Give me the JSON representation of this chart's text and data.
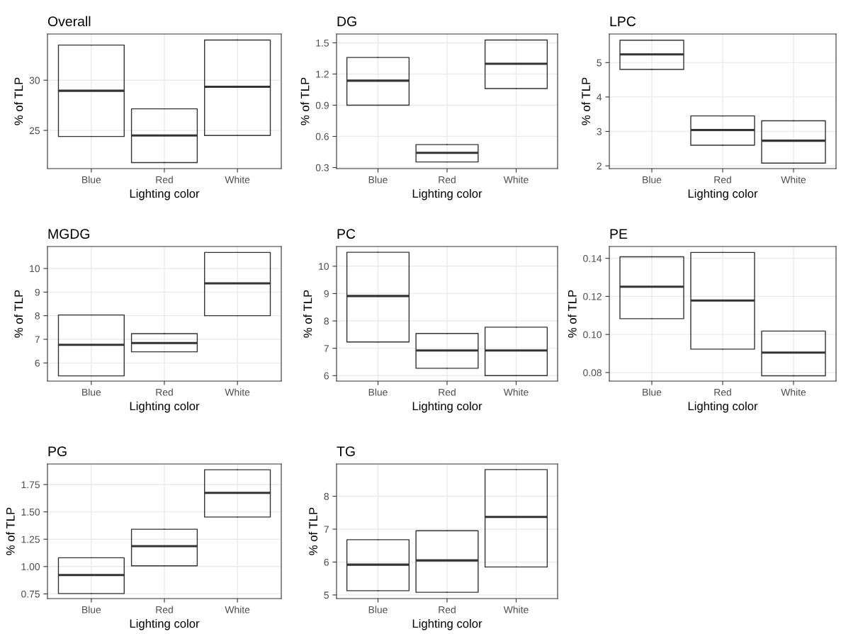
{
  "chart_data": [
    {
      "type": "box",
      "title": "Overall",
      "xlabel": "Lighting color",
      "ylabel": "% of TLP",
      "categories": [
        "Blue",
        "Red",
        "White"
      ],
      "boxes": [
        {
          "low": 24.4,
          "q1": 24.4,
          "median": 28.95,
          "q3": 33.5,
          "high": 33.5
        },
        {
          "low": 21.8,
          "q1": 21.8,
          "median": 24.5,
          "q3": 27.15,
          "high": 27.15
        },
        {
          "low": 24.5,
          "q1": 24.5,
          "median": 29.35,
          "q3": 34.0,
          "high": 34.0
        }
      ],
      "ylim": [
        21.2,
        34.6
      ],
      "yticks": [
        25,
        30
      ],
      "grid": true
    },
    {
      "type": "box",
      "title": "DG",
      "xlabel": "Lighting color",
      "ylabel": "% of TLP",
      "categories": [
        "Blue",
        "Red",
        "White"
      ],
      "boxes": [
        {
          "low": 0.9,
          "q1": 0.9,
          "median": 1.136,
          "q3": 1.359,
          "high": 1.359
        },
        {
          "low": 0.354,
          "q1": 0.354,
          "median": 0.441,
          "q3": 0.521,
          "high": 0.521
        },
        {
          "low": 1.06,
          "q1": 1.06,
          "median": 1.299,
          "q3": 1.527,
          "high": 1.527
        }
      ],
      "ylim": [
        0.29,
        1.585
      ],
      "yticks": [
        0.3,
        0.6,
        0.9,
        1.2,
        1.5
      ],
      "grid": true
    },
    {
      "type": "box",
      "title": "LPC",
      "xlabel": "Lighting color",
      "ylabel": "% of TLP",
      "categories": [
        "Blue",
        "Red",
        "White"
      ],
      "boxes": [
        {
          "low": 4.8,
          "q1": 4.8,
          "median": 5.24,
          "q3": 5.65,
          "high": 5.65
        },
        {
          "low": 2.6,
          "q1": 2.6,
          "median": 3.04,
          "q3": 3.45,
          "high": 3.45
        },
        {
          "low": 2.08,
          "q1": 2.08,
          "median": 2.73,
          "q3": 3.31,
          "high": 3.31
        }
      ],
      "ylim": [
        1.92,
        5.83
      ],
      "yticks": [
        2,
        3,
        4,
        5
      ],
      "grid": true
    },
    {
      "type": "box",
      "title": "MGDG",
      "xlabel": "Lighting color",
      "ylabel": "% of TLP",
      "categories": [
        "Blue",
        "Red",
        "White"
      ],
      "boxes": [
        {
          "low": 5.45,
          "q1": 5.45,
          "median": 6.77,
          "q3": 8.03,
          "high": 8.03
        },
        {
          "low": 6.47,
          "q1": 6.47,
          "median": 6.84,
          "q3": 7.24,
          "high": 7.24
        },
        {
          "low": 8.0,
          "q1": 8.0,
          "median": 9.37,
          "q3": 10.68,
          "high": 10.68
        }
      ],
      "ylim": [
        5.23,
        10.93
      ],
      "yticks": [
        6,
        7,
        8,
        9,
        10
      ],
      "grid": true
    },
    {
      "type": "box",
      "title": "PC",
      "xlabel": "Lighting color",
      "ylabel": "% of TLP",
      "categories": [
        "Blue",
        "Red",
        "White"
      ],
      "boxes": [
        {
          "low": 7.23,
          "q1": 7.23,
          "median": 8.91,
          "q3": 10.51,
          "high": 10.51
        },
        {
          "low": 6.27,
          "q1": 6.27,
          "median": 6.92,
          "q3": 7.54,
          "high": 7.54
        },
        {
          "low": 6.0,
          "q1": 6.0,
          "median": 6.92,
          "q3": 7.77,
          "high": 7.77
        }
      ],
      "ylim": [
        5.8,
        10.72
      ],
      "yticks": [
        6,
        7,
        8,
        9,
        10
      ],
      "grid": true
    },
    {
      "type": "box",
      "title": "PE",
      "xlabel": "Lighting color",
      "ylabel": "% of TLP",
      "categories": [
        "Blue",
        "Red",
        "White"
      ],
      "boxes": [
        {
          "low": 0.1083,
          "q1": 0.1083,
          "median": 0.1251,
          "q3": 0.1408,
          "high": 0.1408
        },
        {
          "low": 0.0923,
          "q1": 0.0923,
          "median": 0.1178,
          "q3": 0.1431,
          "high": 0.1431
        },
        {
          "low": 0.0783,
          "q1": 0.0783,
          "median": 0.0905,
          "q3": 0.1018,
          "high": 0.1018
        }
      ],
      "ylim": [
        0.0755,
        0.1462
      ],
      "yticks": [
        0.08,
        {
          "value": 0.1,
          "label": "0.10"
        },
        0.12,
        0.14
      ],
      "grid": true
    },
    {
      "type": "box",
      "title": "PG",
      "xlabel": "Lighting color",
      "ylabel": "% of TLP",
      "categories": [
        "Blue",
        "Red",
        "White"
      ],
      "boxes": [
        {
          "low": 0.753,
          "q1": 0.753,
          "median": 0.922,
          "q3": 1.08,
          "high": 1.08
        },
        {
          "low": 1.007,
          "q1": 1.007,
          "median": 1.186,
          "q3": 1.341,
          "high": 1.341
        },
        {
          "low": 1.453,
          "q1": 1.453,
          "median": 1.674,
          "q3": 1.885,
          "high": 1.885
        }
      ],
      "ylim": [
        0.707,
        1.938
      ],
      "yticks": [
        0.75,
        {
          "value": 1.0,
          "label": "1.00"
        },
        1.25,
        {
          "value": 1.5,
          "label": "1.50"
        },
        1.75
      ],
      "grid": true
    },
    {
      "type": "box",
      "title": "TG",
      "xlabel": "Lighting color",
      "ylabel": "% of TLP",
      "categories": [
        "Blue",
        "Red",
        "White"
      ],
      "boxes": [
        {
          "low": 5.13,
          "q1": 5.13,
          "median": 5.92,
          "q3": 6.68,
          "high": 6.68
        },
        {
          "low": 5.08,
          "q1": 5.08,
          "median": 6.05,
          "q3": 6.95,
          "high": 6.95
        },
        {
          "low": 5.85,
          "q1": 5.85,
          "median": 7.37,
          "q3": 8.81,
          "high": 8.81
        }
      ],
      "ylim": [
        4.89,
        8.98
      ],
      "yticks": [
        5,
        6,
        7,
        8
      ],
      "grid": true
    }
  ]
}
